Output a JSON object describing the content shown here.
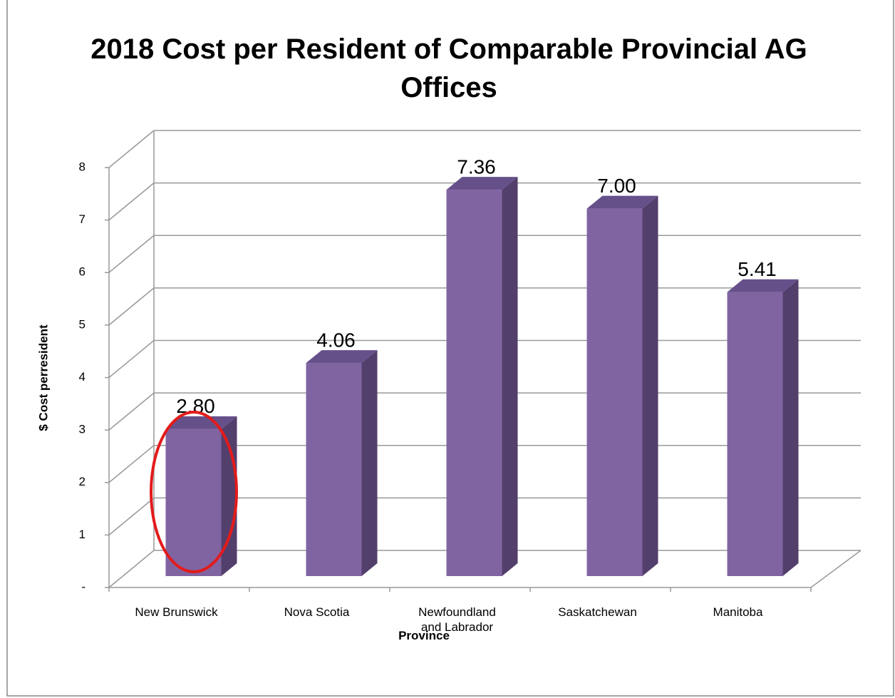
{
  "chart_data": {
    "type": "bar3d",
    "title": "2018 Cost per Resident of Comparable Provincial AG Offices",
    "y_label": "$ Cost perresident",
    "x_label": "Province",
    "categories": [
      "New Brunswick",
      "Nova Scotia",
      "Newfoundland and Labrador",
      "Saskatchewan",
      "Manitoba"
    ],
    "values": [
      2.8,
      4.06,
      7.36,
      7,
      5.41
    ],
    "value_labels": [
      "2.80",
      "4.06",
      "7.36",
      "7.00",
      "5.41"
    ],
    "color": "#8064a2",
    "ylim": [
      0,
      8
    ],
    "yticks": [
      {
        "value": 0,
        "label": "-"
      },
      1,
      2,
      3,
      4,
      5,
      6,
      7,
      8
    ],
    "grid": true
  }
}
